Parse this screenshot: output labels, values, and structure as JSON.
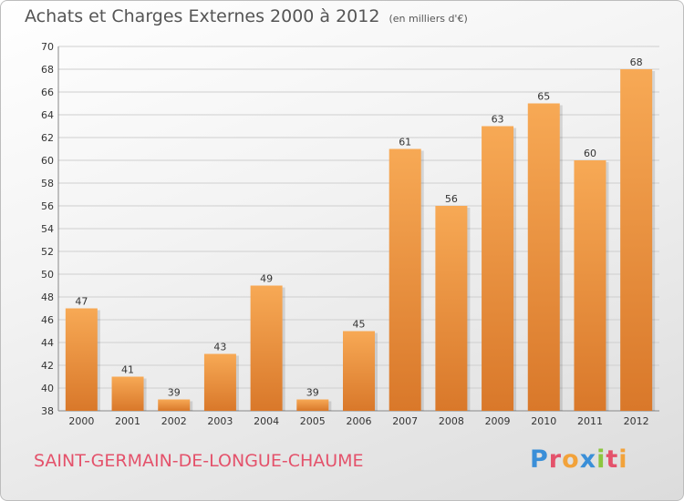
{
  "header": {
    "title": "Achats et Charges Externes 2000 à 2012",
    "unit": "(en milliers d'€)"
  },
  "footer": {
    "commune": "SAINT-GERMAIN-DE-LONGUE-CHAUME"
  },
  "logo": {
    "text": "Proxiti",
    "letters": [
      {
        "char": "P",
        "color": "#3a8fd8"
      },
      {
        "char": "r",
        "color": "#e4526b"
      },
      {
        "char": "o",
        "color": "#f2a23a"
      },
      {
        "char": "x",
        "color": "#3a8fd8"
      },
      {
        "char": "i",
        "color": "#8cc63f"
      },
      {
        "char": "t",
        "color": "#e4526b"
      },
      {
        "char": "i",
        "color": "#f2a23a"
      }
    ]
  },
  "colors": {
    "bar_light": "#f7a955",
    "bar_dark": "#d9782a",
    "grid": "#cfcfcf",
    "axis_text": "#333333",
    "title": "#555555",
    "commune": "#e4526b"
  },
  "chart_data": {
    "type": "bar",
    "title": "Achats et Charges Externes 2000 à 2012",
    "subtitle": "(en milliers d'€)",
    "categories": [
      "2000",
      "2001",
      "2002",
      "2003",
      "2004",
      "2005",
      "2006",
      "2007",
      "2008",
      "2009",
      "2010",
      "2011",
      "2012"
    ],
    "values": [
      47,
      41,
      39,
      43,
      49,
      39,
      45,
      61,
      56,
      63,
      65,
      60,
      68
    ],
    "ylim": [
      38,
      70
    ],
    "yticks": [
      38,
      40,
      42,
      44,
      46,
      48,
      50,
      52,
      54,
      56,
      58,
      60,
      62,
      64,
      66,
      68,
      70
    ],
    "grid": true,
    "xlabel": "",
    "ylabel": ""
  }
}
